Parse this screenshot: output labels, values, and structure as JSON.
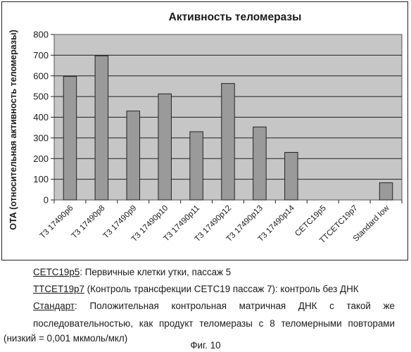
{
  "chart_data": {
    "type": "bar",
    "title": "Активность теломеразы",
    "ylabel": "ОТА (относительная активность теломеразы)",
    "xlabel": "",
    "categories": [
      "T3 17490p6",
      "T3 17490p8",
      "T3 17490p9",
      "T3 17490p10",
      "T3 17490p11",
      "T3 17490p12",
      "T3 17490p13",
      "T3 17490p14",
      "CETC19p5",
      "TTCETC19p7",
      "Standard low"
    ],
    "values": [
      597,
      697,
      430,
      513,
      330,
      563,
      353,
      230,
      0,
      0,
      83
    ],
    "ylim": [
      0,
      800
    ],
    "yticks": [
      0,
      100,
      200,
      300,
      400,
      500,
      600,
      700,
      800
    ],
    "grid": true,
    "bar_color": "#9a9a9a",
    "plot_background": "#c6c6c6"
  },
  "captions": {
    "line1_key": "CETC19p5",
    "line1_text": ": Первичные клетки утки, пассаж 5",
    "line2_key": "TTCET19p7",
    "line2_text": " (Контроль трансфекции CETC19 пассаж 7): контроль без ДНК",
    "line3_key": "Стандарт",
    "line3_text": ": Положительная контрольная матричная ДНК с такой же",
    "line4_text": "последовательностью, как продукт теломеразы с 8 теломерными повторами",
    "line5_text": "(низкий = 0,001 мкмоль/мкл)"
  },
  "figure_label": "Фиг. 10"
}
